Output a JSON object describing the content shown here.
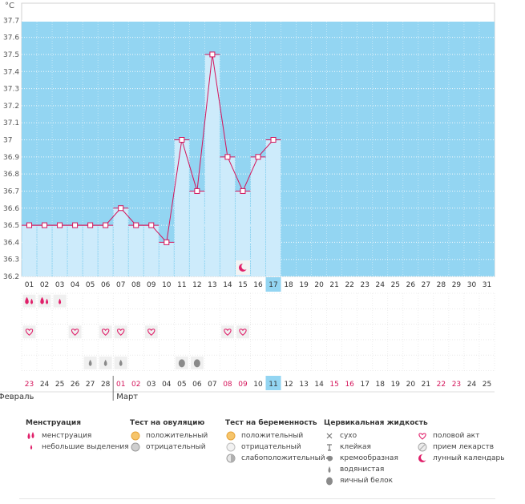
{
  "colors": {
    "plot_bg": "#93d5f2",
    "bar": "#cdebfb",
    "line": "#d4145a",
    "grid": "#ffffff",
    "accent_pink": "#e0206a",
    "today_highlight": "#93d5f2",
    "row_bg": "#f0f0f0",
    "gray_icon": "#8a8a8a"
  },
  "chart_data": {
    "type": "bar-line",
    "unit_label": "°C",
    "ylim": [
      36.2,
      37.8
    ],
    "y_ticks": [
      "37.7",
      "37.6",
      "37.5",
      "37.4",
      "37.3",
      "37.2",
      "37.1",
      "37",
      "36.9",
      "36.8",
      "36.7",
      "36.6",
      "36.5",
      "36.4",
      "36.3",
      "36.2"
    ],
    "cycle_days": [
      "01",
      "02",
      "03",
      "04",
      "05",
      "06",
      "07",
      "08",
      "09",
      "10",
      "11",
      "12",
      "13",
      "14",
      "15",
      "16",
      "17",
      "18",
      "19",
      "20",
      "21",
      "22",
      "23",
      "24",
      "25",
      "26",
      "27",
      "28",
      "29",
      "30",
      "31"
    ],
    "temperatures": [
      36.5,
      36.5,
      36.5,
      36.5,
      36.5,
      36.5,
      36.6,
      36.5,
      36.5,
      36.4,
      37.0,
      36.7,
      37.5,
      36.9,
      36.7,
      36.9,
      37.0
    ],
    "today_index": 16,
    "calendar_dates": [
      "23",
      "24",
      "25",
      "26",
      "27",
      "28",
      "01",
      "02",
      "03",
      "04",
      "05",
      "06",
      "07",
      "08",
      "09",
      "10",
      "11",
      "12",
      "13",
      "14",
      "15",
      "16",
      "17",
      "18",
      "19",
      "20",
      "21",
      "22",
      "23",
      "24",
      "25"
    ],
    "red_date_indices": [
      0,
      6,
      7,
      13,
      14,
      20,
      21,
      27,
      28
    ],
    "month_labels": [
      {
        "label": "Февраль",
        "col": 0
      },
      {
        "label": "Март",
        "col": 6
      }
    ],
    "menstruation": [
      {
        "day": 0,
        "kind": "heavy"
      },
      {
        "day": 1,
        "kind": "heavy"
      },
      {
        "day": 2,
        "kind": "light"
      }
    ],
    "intercourse_days": [
      0,
      3,
      5,
      6,
      8,
      13,
      14
    ],
    "cervical_fluid": [
      {
        "day": 4,
        "kind": "watery"
      },
      {
        "day": 5,
        "kind": "watery"
      },
      {
        "day": 6,
        "kind": "watery"
      },
      {
        "day": 10,
        "kind": "eggwhite"
      },
      {
        "day": 11,
        "kind": "eggwhite"
      }
    ],
    "lunar_day": 14
  },
  "legend": {
    "menstruation": {
      "title": "Менструация",
      "items": [
        {
          "icon": "drop-double",
          "label": "менструация"
        },
        {
          "icon": "drop-small",
          "label": "небольшие выделения"
        }
      ]
    },
    "ovulation": {
      "title": "Тест на овуляцию",
      "items": [
        {
          "icon": "circle-orange",
          "label": "положительный"
        },
        {
          "icon": "circle-gray",
          "label": "отрицательный"
        }
      ]
    },
    "pregnancy": {
      "title": "Тест на беременность",
      "items": [
        {
          "icon": "circle-orange",
          "label": "положительный"
        },
        {
          "icon": "circle-light",
          "label": "отрицательный"
        },
        {
          "icon": "circle-half",
          "label": "слабоположительный"
        }
      ]
    },
    "cervical": {
      "title": "Цервикальная жидкость",
      "items": [
        {
          "icon": "cross",
          "label": "сухо"
        },
        {
          "icon": "tee",
          "label": "клейкая"
        },
        {
          "icon": "blob",
          "label": "кремообразная"
        },
        {
          "icon": "drop-gray",
          "label": "водянистая"
        },
        {
          "icon": "egg",
          "label": "яичный белок"
        }
      ]
    },
    "other": {
      "items": [
        {
          "icon": "heart",
          "label": "половой акт"
        },
        {
          "icon": "pill",
          "label": "прием лекарств"
        },
        {
          "icon": "moon",
          "label": "лунный календарь"
        }
      ]
    }
  }
}
